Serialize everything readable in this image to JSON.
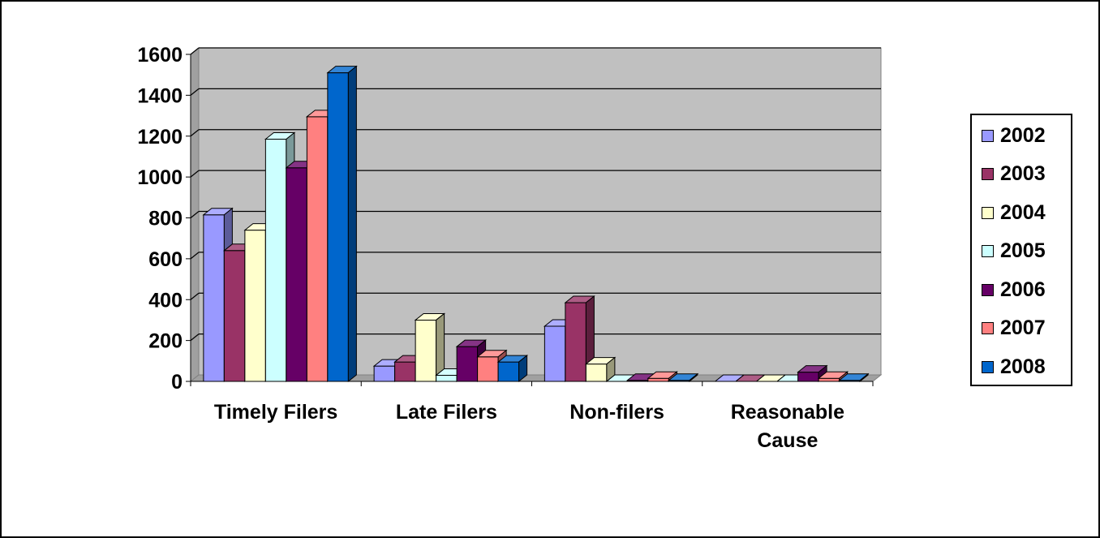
{
  "chart_data": {
    "type": "bar",
    "categories": [
      "Timely Filers",
      "Late Filers",
      "Non-filers",
      "Reasonable Cause"
    ],
    "category_lines": [
      [
        "Timely Filers"
      ],
      [
        "Late Filers"
      ],
      [
        "Non-filers"
      ],
      [
        "Reasonable",
        "Cause"
      ]
    ],
    "series": [
      {
        "name": "2002",
        "color": "#9999ff",
        "values": [
          815,
          75,
          270,
          0
        ]
      },
      {
        "name": "2003",
        "color": "#993366",
        "values": [
          640,
          95,
          385,
          0
        ]
      },
      {
        "name": "2004",
        "color": "#ffffcc",
        "values": [
          740,
          300,
          85,
          0
        ]
      },
      {
        "name": "2005",
        "color": "#ccffff",
        "values": [
          1185,
          30,
          0,
          0
        ]
      },
      {
        "name": "2006",
        "color": "#660066",
        "values": [
          1045,
          170,
          5,
          45
        ]
      },
      {
        "name": "2007",
        "color": "#ff8080",
        "values": [
          1295,
          120,
          15,
          15
        ]
      },
      {
        "name": "2008",
        "color": "#0066cc",
        "values": [
          1510,
          95,
          5,
          5
        ]
      }
    ],
    "yticks": [
      0,
      200,
      400,
      600,
      800,
      1000,
      1200,
      1400,
      1600
    ],
    "ylim": [
      0,
      1600
    ],
    "title": "",
    "xlabel": "",
    "ylabel": "",
    "grid": true,
    "legend_position": "right",
    "plot_background": "#c0c0c0"
  }
}
